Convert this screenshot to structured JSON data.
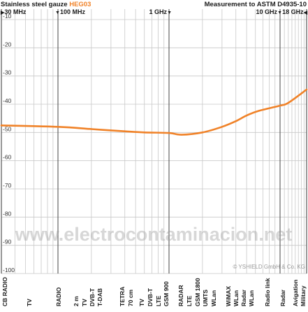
{
  "header": {
    "product_prefix": "Stainless steel gauze",
    "product_code": "HEG03",
    "measurement": "Measurement to ASTM D4935-10"
  },
  "markers": [
    {
      "label": "30 MHz",
      "arrow": "▶"
    },
    {
      "label": "100 MHz",
      "arrow": "▼"
    },
    {
      "label": "1 GHz",
      "arrow": "▼"
    },
    {
      "label": "10 GHz",
      "arrow": "▼"
    },
    {
      "label": "18 GHz",
      "arrow": "◀"
    }
  ],
  "watermark": "www.electrocontaminacion.net",
  "copyright": "© YSHIELD GmbH & Co. KG",
  "colors": {
    "accent": "#f08228",
    "grid": "#c8c8c8",
    "major_grid": "#555555",
    "text": "#1a1a1a"
  },
  "chart_data": {
    "type": "line",
    "x_scale": "log",
    "xlim": [
      "30 MHz",
      "18 GHz"
    ],
    "ylim": [
      -100,
      0
    ],
    "y_ticks": [
      "-10",
      "-20",
      "-30",
      "-40",
      "-50",
      "-60",
      "-70",
      "-80",
      "-90",
      "-100"
    ],
    "grid": true,
    "series": [
      {
        "values": [
          {
            "x": "30 MHz",
            "y": -47.5
          },
          {
            "x": "100 MHz",
            "y": -48.0
          },
          {
            "x": "200 MHz",
            "y": -48.8
          },
          {
            "x": "400 MHz",
            "y": -49.6
          },
          {
            "x": "600 MHz",
            "y": -50.0
          },
          {
            "x": "1 GHz",
            "y": -50.2
          },
          {
            "x": "1.3 GHz",
            "y": -50.8
          },
          {
            "x": "2 GHz",
            "y": -50.0
          },
          {
            "x": "3 GHz",
            "y": -48.0
          },
          {
            "x": "4 GHz",
            "y": -46.0
          },
          {
            "x": "5 GHz",
            "y": -44.0
          },
          {
            "x": "6.5 GHz",
            "y": -42.3
          },
          {
            "x": "10 GHz",
            "y": -40.5
          },
          {
            "x": "12 GHz",
            "y": -39.5
          },
          {
            "x": "18 GHz",
            "y": -34.8
          }
        ]
      }
    ],
    "band_labels": [
      {
        "text": "CB RADIO"
      },
      {
        "text": "TV"
      },
      {
        "text": "RADIO"
      },
      {
        "text": "2 m"
      },
      {
        "text": "TV"
      },
      {
        "text": "DVB-T"
      },
      {
        "text": "T-DAB"
      },
      {
        "text": "TETRA"
      },
      {
        "text": "70 cm"
      },
      {
        "text": "TV"
      },
      {
        "text": "DVB-T"
      },
      {
        "text": "LTE"
      },
      {
        "text": "GSM 900"
      },
      {
        "text": "RADAR"
      },
      {
        "text": "LTE"
      },
      {
        "text": "GSM 1800"
      },
      {
        "text": "UMTS"
      },
      {
        "text": "WLan"
      },
      {
        "text": "WiMAX"
      },
      {
        "text": "WLan"
      },
      {
        "text": "Radar"
      },
      {
        "text": "WLan"
      },
      {
        "text": "Radio link"
      },
      {
        "text": "Radar"
      },
      {
        "text": "Avigation"
      },
      {
        "text": "Military"
      }
    ]
  }
}
